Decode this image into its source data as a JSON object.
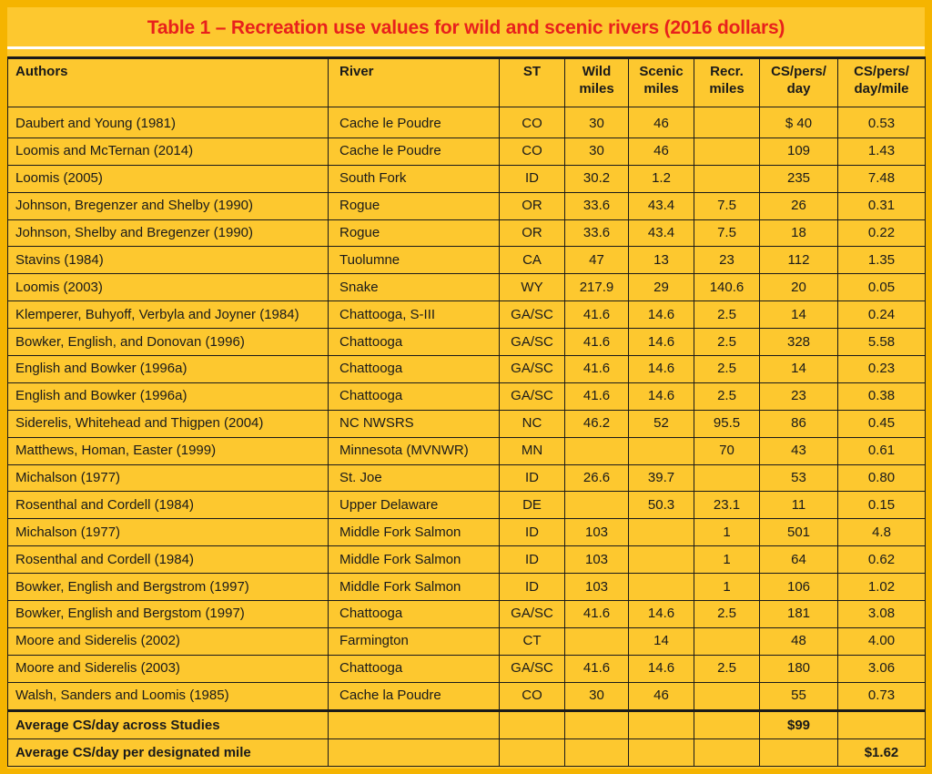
{
  "title": "Table 1 – Recreation use values for wild and scenic rivers (2016 dollars)",
  "table": {
    "headers": {
      "authors": "Authors",
      "river": "River",
      "st": "ST",
      "wild_1": "Wild",
      "wild_2": "miles",
      "scenic_1": "Scenic",
      "scenic_2": "miles",
      "recr_1": "Recr.",
      "recr_2": "miles",
      "cs_1": "CS/pers/",
      "cs_2": "day",
      "csm_1": "CS/pers/",
      "csm_2": "day/mile"
    },
    "rows": [
      {
        "authors": "Daubert and Young (1981)",
        "river": "Cache le Poudre",
        "st": "CO",
        "wild": "30",
        "scenic": "46",
        "recr": "",
        "cs": "$ 40",
        "csm": "0.53"
      },
      {
        "authors": "Loomis and McTernan (2014)",
        "river": "Cache le Poudre",
        "st": "CO",
        "wild": "30",
        "scenic": "46",
        "recr": "",
        "cs": "109",
        "csm": "1.43"
      },
      {
        "authors": "Loomis (2005)",
        "river": "South Fork",
        "st": "ID",
        "wild": "30.2",
        "scenic": "1.2",
        "recr": "",
        "cs": "235",
        "csm": "7.48"
      },
      {
        "authors": "Johnson, Bregenzer and Shelby (1990)",
        "river": "Rogue",
        "st": "OR",
        "wild": "33.6",
        "scenic": "43.4",
        "recr": "7.5",
        "cs": "26",
        "csm": "0.31"
      },
      {
        "authors": "Johnson, Shelby and Bregenzer (1990)",
        "river": "Rogue",
        "st": "OR",
        "wild": "33.6",
        "scenic": "43.4",
        "recr": "7.5",
        "cs": "18",
        "csm": "0.22"
      },
      {
        "authors": "Stavins (1984)",
        "river": "Tuolumne",
        "st": "CA",
        "wild": "47",
        "scenic": "13",
        "recr": "23",
        "cs": "112",
        "csm": "1.35"
      },
      {
        "authors": "Loomis (2003)",
        "river": "Snake",
        "st": "WY",
        "wild": "217.9",
        "scenic": "29",
        "recr": "140.6",
        "cs": "20",
        "csm": "0.05"
      },
      {
        "authors": "Klemperer, Buhyoff, Verbyla and Joyner (1984)",
        "river": "Chattooga, S-III",
        "st": "GA/SC",
        "wild": "41.6",
        "scenic": "14.6",
        "recr": "2.5",
        "cs": "14",
        "csm": "0.24"
      },
      {
        "authors": "Bowker, English, and Donovan (1996)",
        "river": "Chattooga",
        "st": "GA/SC",
        "wild": "41.6",
        "scenic": "14.6",
        "recr": "2.5",
        "cs": "328",
        "csm": "5.58"
      },
      {
        "authors": "English and Bowker (1996a)",
        "river": "Chattooga",
        "st": "GA/SC",
        "wild": "41.6",
        "scenic": "14.6",
        "recr": "2.5",
        "cs": "14",
        "csm": "0.23"
      },
      {
        "authors": "English and Bowker (1996a)",
        "river": "Chattooga",
        "st": "GA/SC",
        "wild": "41.6",
        "scenic": "14.6",
        "recr": "2.5",
        "cs": "23",
        "csm": "0.38"
      },
      {
        "authors": "Siderelis, Whitehead and Thigpen (2004)",
        "river": "NC NWSRS",
        "st": "NC",
        "wild": "46.2",
        "scenic": "52",
        "recr": "95.5",
        "cs": "86",
        "csm": "0.45"
      },
      {
        "authors": "Matthews, Homan, Easter (1999)",
        "river": "Minnesota (MVNWR)",
        "st": "MN",
        "wild": "",
        "scenic": "",
        "recr": "70",
        "cs": "43",
        "csm": "0.61"
      },
      {
        "authors": "Michalson (1977)",
        "river": "St. Joe",
        "st": "ID",
        "wild": "26.6",
        "scenic": "39.7",
        "recr": "",
        "cs": "53",
        "csm": "0.80"
      },
      {
        "authors": "Rosenthal and Cordell (1984)",
        "river": "Upper Delaware",
        "st": "DE",
        "wild": "",
        "scenic": "50.3",
        "recr": "23.1",
        "cs": "11",
        "csm": "0.15"
      },
      {
        "authors": "Michalson (1977)",
        "river": "Middle Fork Salmon",
        "st": "ID",
        "wild": "103",
        "scenic": "",
        "recr": "1",
        "cs": "501",
        "csm": "4.8"
      },
      {
        "authors": "Rosenthal and Cordell (1984)",
        "river": "Middle Fork Salmon",
        "st": "ID",
        "wild": "103",
        "scenic": "",
        "recr": "1",
        "cs": "64",
        "csm": "0.62"
      },
      {
        "authors": "Bowker, English and Bergstrom (1997)",
        "river": "Middle Fork Salmon",
        "st": "ID",
        "wild": "103",
        "scenic": "",
        "recr": "1",
        "cs": "106",
        "csm": "1.02"
      },
      {
        "authors": "Bowker, English and Bergstom (1997)",
        "river": "Chattooga",
        "st": "GA/SC",
        "wild": "41.6",
        "scenic": "14.6",
        "recr": "2.5",
        "cs": "181",
        "csm": "3.08"
      },
      {
        "authors": "Moore and Siderelis (2002)",
        "river": "Farmington",
        "st": "CT",
        "wild": "",
        "scenic": "14",
        "recr": "",
        "cs": "48",
        "csm": "4.00"
      },
      {
        "authors": "Moore and Siderelis (2003)",
        "river": "Chattooga",
        "st": "GA/SC",
        "wild": "41.6",
        "scenic": "14.6",
        "recr": "2.5",
        "cs": "180",
        "csm": "3.06"
      },
      {
        "authors": "Walsh, Sanders and Loomis (1985)",
        "river": "Cache la Poudre",
        "st": "CO",
        "wild": "30",
        "scenic": "46",
        "recr": "",
        "cs": "55",
        "csm": "0.73"
      }
    ],
    "footer": {
      "avg_day_label": "Average CS/day across Studies",
      "avg_day_value": "$99",
      "avg_mile_label": "Average CS/day per designated mile",
      "avg_mile_value": "$1.62"
    }
  }
}
